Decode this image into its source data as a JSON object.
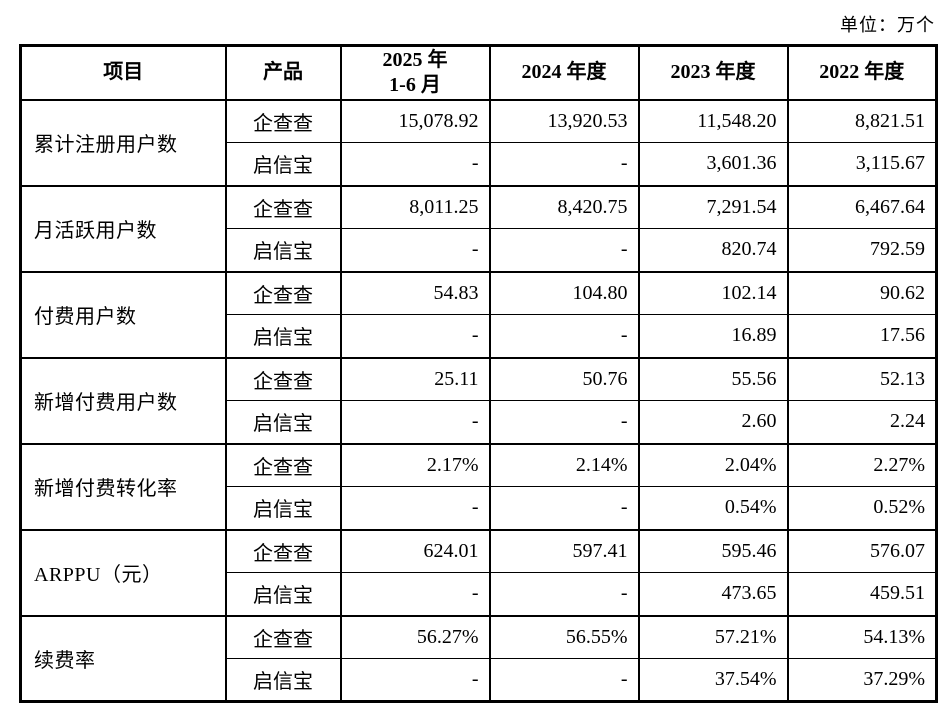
{
  "unit_label": "单位：万个",
  "colors": {
    "border": "#000000",
    "text": "#000000",
    "background": "#ffffff"
  },
  "table": {
    "headers": {
      "item": "项目",
      "product": "产品",
      "period_current": {
        "line1": "2025 年",
        "line2": "1-6 月"
      },
      "period_2024": "2024 年度",
      "period_2023": "2023 年度",
      "period_2022": "2022 年度"
    },
    "groups": [
      {
        "item": "累计注册用户数",
        "rows": [
          {
            "product": "企查查",
            "values": [
              "15,078.92",
              "13,920.53",
              "11,548.20",
              "8,821.51"
            ]
          },
          {
            "product": "启信宝",
            "values": [
              "-",
              "-",
              "3,601.36",
              "3,115.67"
            ]
          }
        ]
      },
      {
        "item": "月活跃用户数",
        "rows": [
          {
            "product": "企查查",
            "values": [
              "8,011.25",
              "8,420.75",
              "7,291.54",
              "6,467.64"
            ]
          },
          {
            "product": "启信宝",
            "values": [
              "-",
              "-",
              "820.74",
              "792.59"
            ]
          }
        ]
      },
      {
        "item": "付费用户数",
        "rows": [
          {
            "product": "企查查",
            "values": [
              "54.83",
              "104.80",
              "102.14",
              "90.62"
            ]
          },
          {
            "product": "启信宝",
            "values": [
              "-",
              "-",
              "16.89",
              "17.56"
            ]
          }
        ]
      },
      {
        "item": "新增付费用户数",
        "rows": [
          {
            "product": "企查查",
            "values": [
              "25.11",
              "50.76",
              "55.56",
              "52.13"
            ]
          },
          {
            "product": "启信宝",
            "values": [
              "-",
              "-",
              "2.60",
              "2.24"
            ]
          }
        ]
      },
      {
        "item": "新增付费转化率",
        "rows": [
          {
            "product": "企查查",
            "values": [
              "2.17%",
              "2.14%",
              "2.04%",
              "2.27%"
            ]
          },
          {
            "product": "启信宝",
            "values": [
              "-",
              "-",
              "0.54%",
              "0.52%"
            ]
          }
        ]
      },
      {
        "item": "ARPPU（元）",
        "rows": [
          {
            "product": "企查查",
            "values": [
              "624.01",
              "597.41",
              "595.46",
              "576.07"
            ]
          },
          {
            "product": "启信宝",
            "values": [
              "-",
              "-",
              "473.65",
              "459.51"
            ]
          }
        ]
      },
      {
        "item": "续费率",
        "rows": [
          {
            "product": "企查查",
            "values": [
              "56.27%",
              "56.55%",
              "57.21%",
              "54.13%"
            ]
          },
          {
            "product": "启信宝",
            "values": [
              "-",
              "-",
              "37.54%",
              "37.29%"
            ]
          }
        ]
      }
    ]
  }
}
